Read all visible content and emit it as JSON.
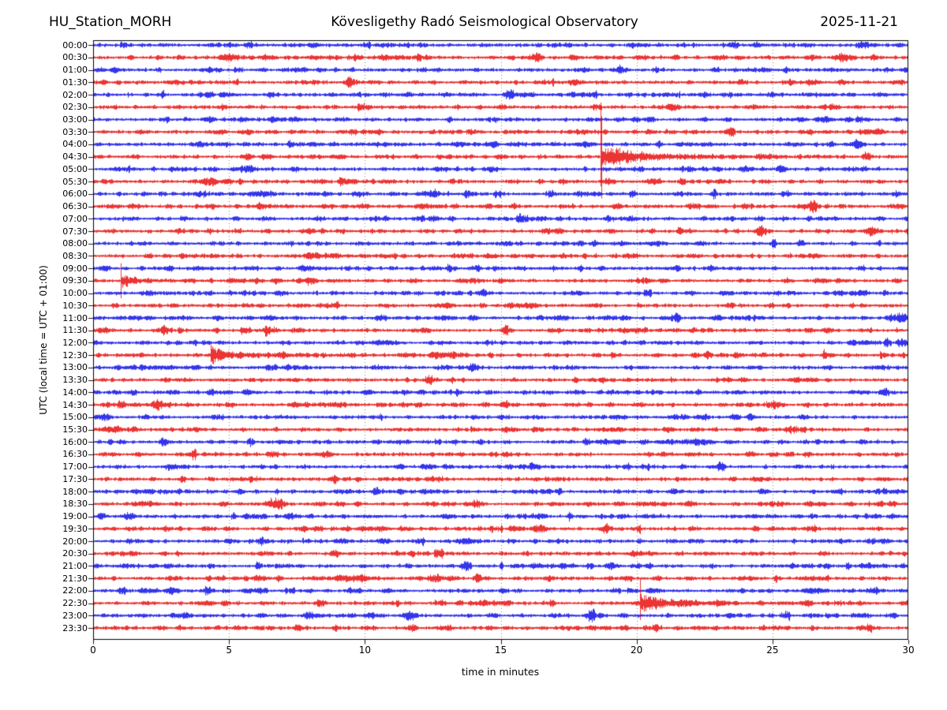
{
  "header": {
    "station": "HU_Station_MORH",
    "observatory": "Kövesligethy Radó Seismological Observatory",
    "date": "2025-11-21"
  },
  "axes": {
    "ylabel": "UTC (local time = UTC + 01:00)",
    "xlabel": "time in minutes"
  },
  "chart_data": {
    "type": "line",
    "variant": "helicorder-dayplot",
    "station": "HU_Station_MORH",
    "title": "Kövesligethy Radó Seismological Observatory",
    "date": "2025-11-21",
    "xlabel": "time in minutes",
    "ylabel": "UTC (local time = UTC + 01:00)",
    "xlim": [
      0,
      30
    ],
    "x_ticks": [
      0,
      5,
      10,
      15,
      20,
      25,
      30
    ],
    "minutes_per_row": 30,
    "rows_per_day": 48,
    "row_labels": [
      "00:00",
      "00:30",
      "01:00",
      "01:30",
      "02:00",
      "02:30",
      "03:00",
      "03:30",
      "04:00",
      "04:30",
      "05:00",
      "05:30",
      "06:00",
      "06:30",
      "07:00",
      "07:30",
      "08:00",
      "08:30",
      "09:00",
      "09:30",
      "10:00",
      "10:30",
      "11:00",
      "11:30",
      "12:00",
      "12:30",
      "13:00",
      "13:30",
      "14:00",
      "14:30",
      "15:00",
      "15:30",
      "16:00",
      "16:30",
      "17:00",
      "17:30",
      "18:00",
      "18:30",
      "19:00",
      "19:30",
      "20:00",
      "20:30",
      "21:00",
      "21:30",
      "22:00",
      "22:30",
      "23:00",
      "23:30"
    ],
    "trace_color_even_rows": "#0000e6",
    "trace_color_odd_rows": "#e60000",
    "frame_color": "#000000",
    "grid": {
      "vertical_lines_minutes": [
        5,
        10,
        15,
        20,
        25
      ],
      "style": "dotted",
      "color": "#777777"
    },
    "background_noise_halfamp_rows": 0.14,
    "events": [
      {
        "row": "04:30",
        "start_minute": 18.65,
        "spike_rows": 4.35,
        "spike_width_min": 0.07,
        "coda_rows": 0.8,
        "coda_tau_min": 1.0,
        "tail_rows": 0.28,
        "tail_tau_min": 3.0,
        "note": "largest event: sharp clipped spike crossing neighbouring rows, long decaying coda"
      },
      {
        "row": "09:30",
        "start_minute": 1.0,
        "spike_rows": 1.5,
        "spike_width_min": 0.04,
        "coda_rows": 0.5,
        "coda_tau_min": 0.4,
        "tail_rows": 0.12,
        "tail_tau_min": 1.2,
        "note": "local spike with short coda"
      },
      {
        "row": "12:30",
        "start_minute": 4.3,
        "spike_rows": 0,
        "spike_width_min": 0,
        "coda_rows": 0.85,
        "coda_tau_min": 0.45,
        "tail_rows": 0.22,
        "tail_tau_min": 2.5,
        "note": "emergent burst with slow tail"
      },
      {
        "row": "12:30",
        "start_minute": 26.85,
        "spike_rows": 0,
        "spike_width_min": 0,
        "coda_rows": 0.45,
        "coda_tau_min": 0.12,
        "tail_rows": 0,
        "tail_tau_min": 1,
        "note": "small burst"
      },
      {
        "row": "12:30",
        "start_minute": 28.95,
        "spike_rows": 0,
        "spike_width_min": 0,
        "coda_rows": 0.5,
        "coda_tau_min": 0.15,
        "tail_rows": 0,
        "tail_tau_min": 1,
        "note": "small burst"
      },
      {
        "row": "22:30",
        "start_minute": 20.1,
        "spike_rows": 1.3,
        "spike_width_min": 0.05,
        "coda_rows": 0.8,
        "coda_tau_min": 0.55,
        "tail_rows": 0.3,
        "tail_tau_min": 2.0,
        "note": "spike and burst with coda to ~24.5 min"
      }
    ]
  }
}
